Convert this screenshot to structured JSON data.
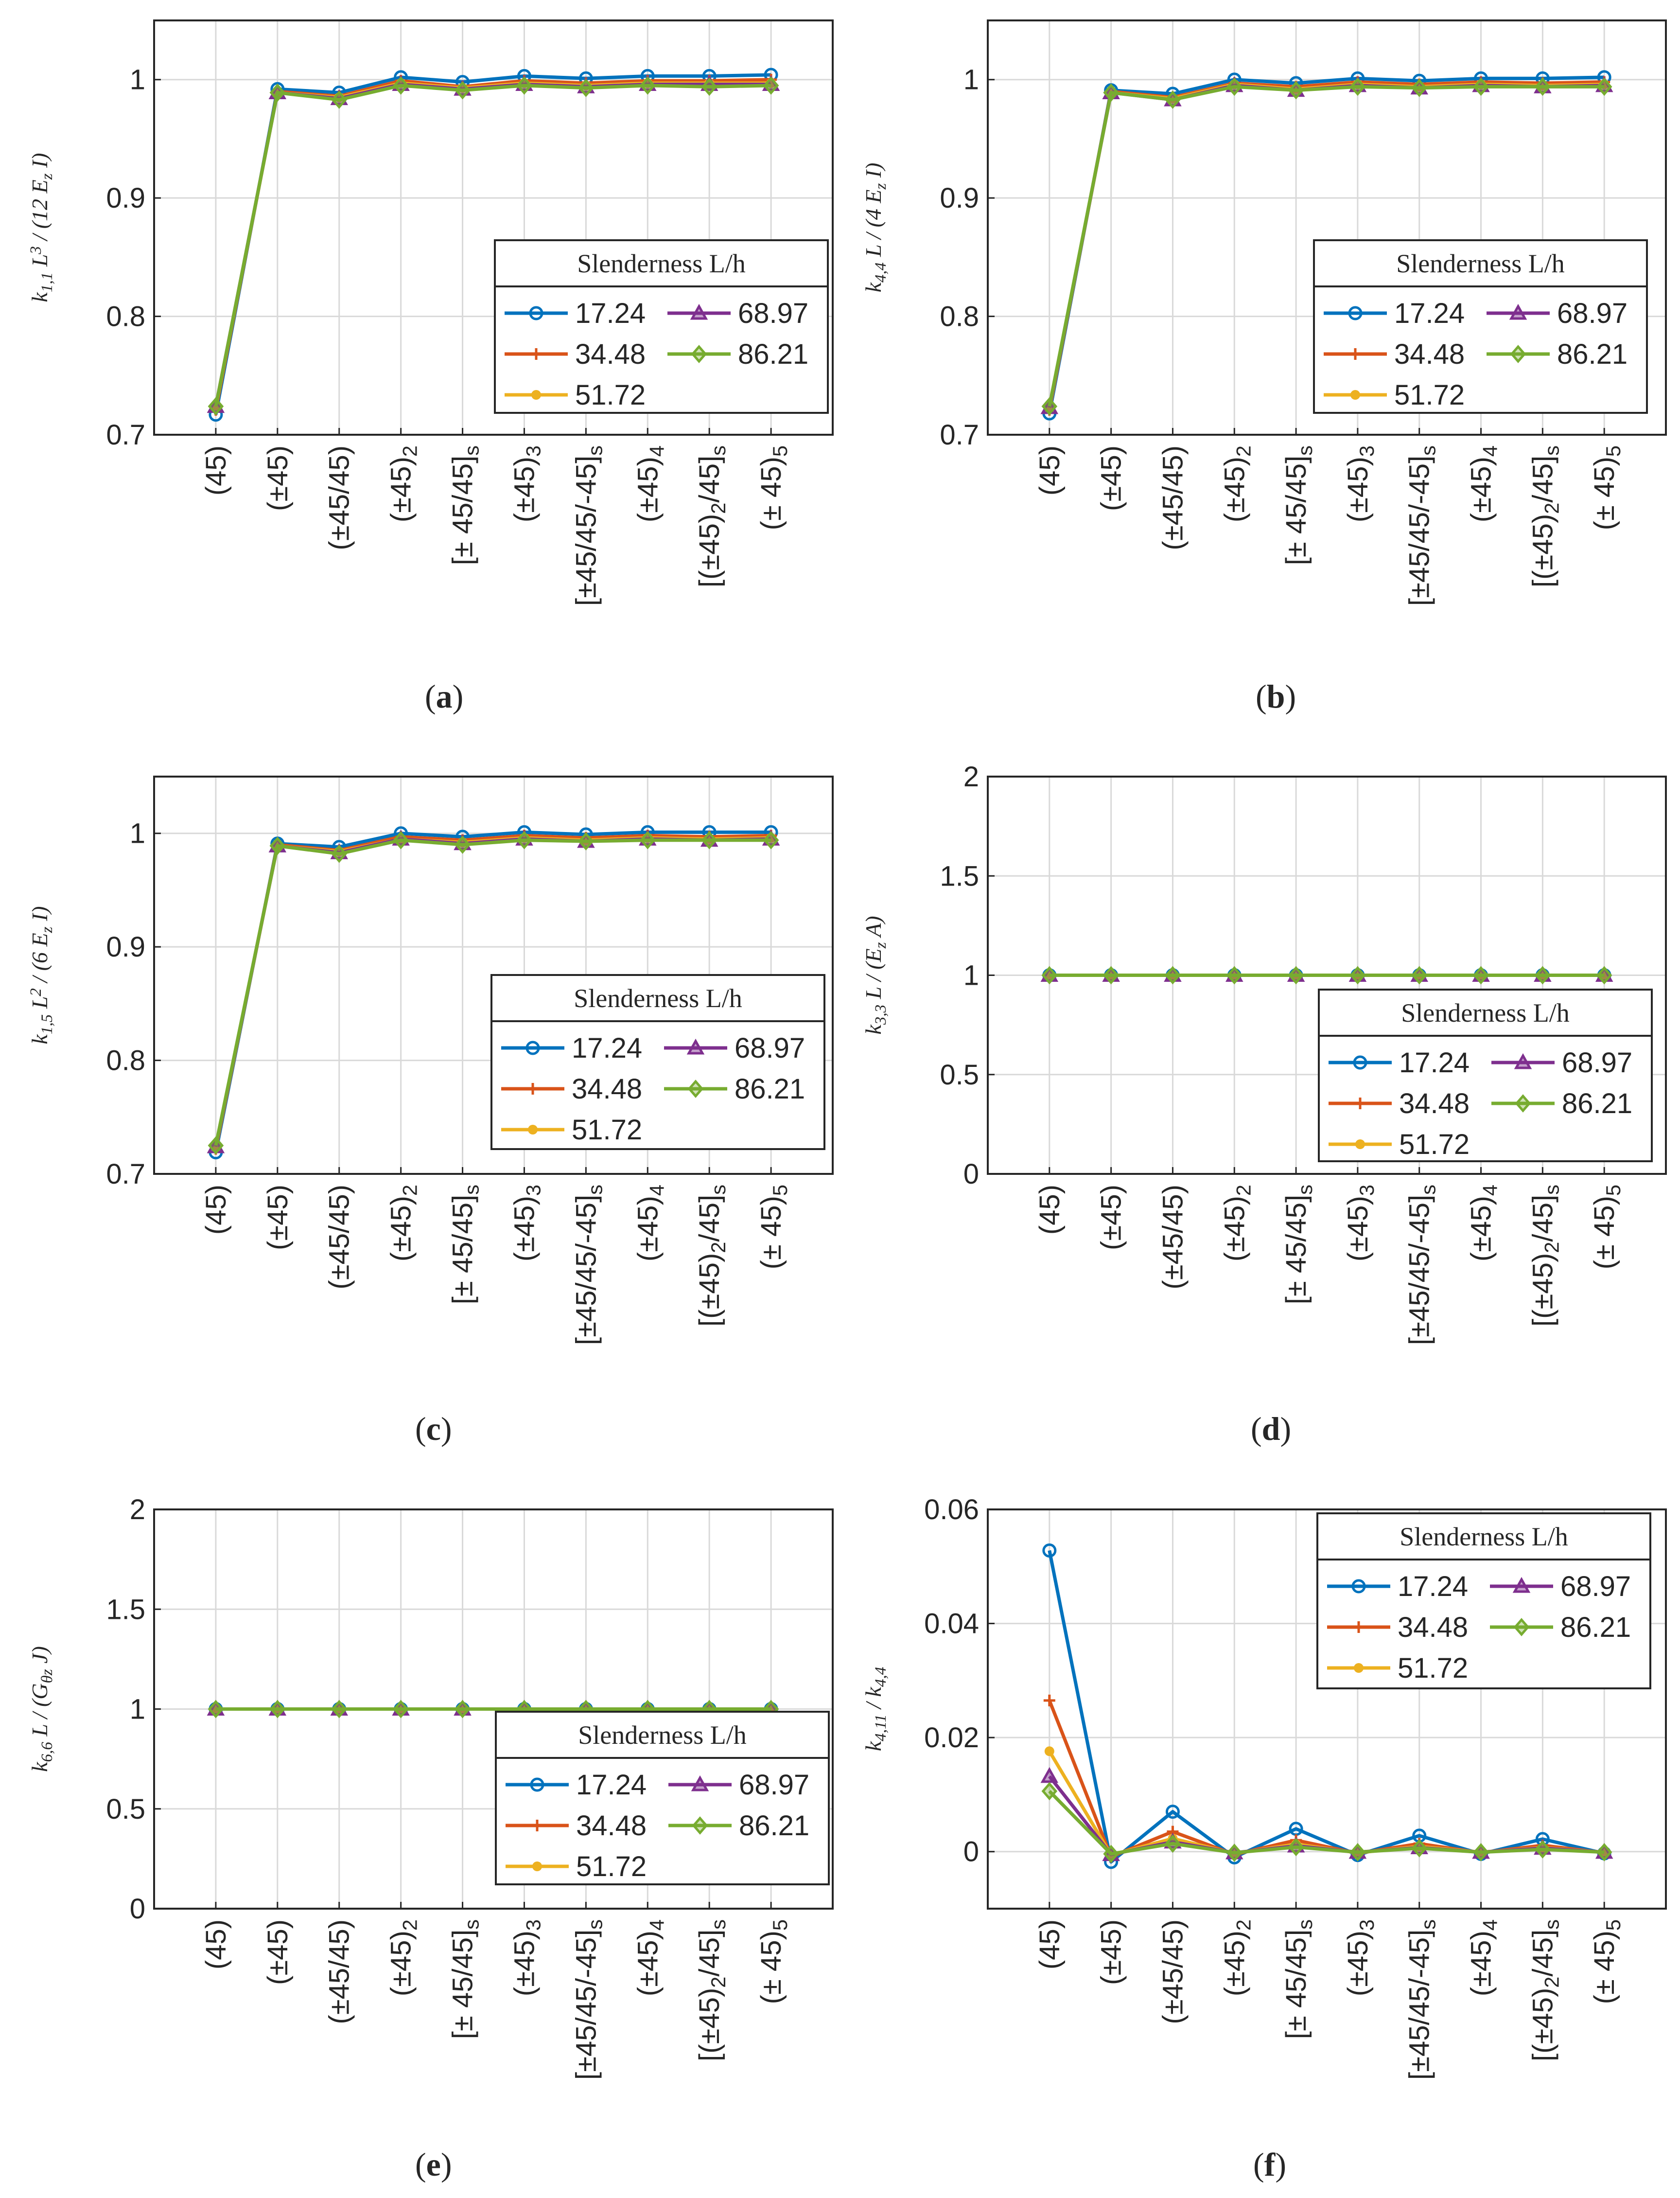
{
  "figure": {
    "legend_title": "Slenderness L/h",
    "series_colors": [
      "#0072BD",
      "#D95319",
      "#EDB120",
      "#7E2F8E",
      "#77AC30"
    ],
    "series_markers": [
      "circle",
      "plus",
      "dot",
      "triangle",
      "diamond"
    ]
  },
  "chart_data": [
    {
      "panel": "a",
      "type": "line",
      "ylabel": "k_{1,1} L^3 / (12 E_z I)",
      "ylim": [
        0.7,
        1.05
      ],
      "yticks": [
        "0.7",
        "0.8",
        "0.9",
        "1"
      ],
      "categories": [
        "(45)",
        "(±45)",
        "(±45/45)",
        "(±45)_2",
        "[± 45/45]_s",
        "(±45)_3",
        "[±45/45/-45]_s",
        "(±45)_4",
        "[(±45)_2/45]_s",
        "(± 45)_5"
      ],
      "legend": "bottom-right",
      "series": [
        {
          "name": "17.24",
          "values": [
            0.717,
            0.992,
            0.989,
            1.002,
            0.998,
            1.003,
            1.001,
            1.003,
            1.003,
            1.004
          ]
        },
        {
          "name": "34.48",
          "values": [
            0.721,
            0.99,
            0.986,
            0.999,
            0.994,
            0.999,
            0.997,
            0.999,
            0.999,
            1.0
          ]
        },
        {
          "name": "51.72",
          "values": [
            0.723,
            0.989,
            0.985,
            0.997,
            0.993,
            0.997,
            0.995,
            0.997,
            0.997,
            0.997
          ]
        },
        {
          "name": "68.97",
          "values": [
            0.724,
            0.989,
            0.984,
            0.996,
            0.992,
            0.996,
            0.994,
            0.996,
            0.996,
            0.996
          ]
        },
        {
          "name": "86.21",
          "values": [
            0.724,
            0.989,
            0.983,
            0.995,
            0.991,
            0.995,
            0.993,
            0.995,
            0.994,
            0.995
          ]
        }
      ]
    },
    {
      "panel": "b",
      "type": "line",
      "ylabel": "k_{4,4} L / (4 E_z I)",
      "ylim": [
        0.7,
        1.05
      ],
      "yticks": [
        "0.7",
        "0.8",
        "0.9",
        "1"
      ],
      "categories": [
        "(45)",
        "(±45)",
        "(±45/45)",
        "(±45)_2",
        "[± 45/45]_s",
        "(±45)_3",
        "[±45/45/-45]_s",
        "(±45)_4",
        "[(±45)_2/45]_s",
        "(± 45)_5"
      ],
      "legend": "bottom-right",
      "series": [
        {
          "name": "17.24",
          "values": [
            0.718,
            0.991,
            0.988,
            1.0,
            0.997,
            1.001,
            0.999,
            1.001,
            1.001,
            1.002
          ]
        },
        {
          "name": "34.48",
          "values": [
            0.721,
            0.99,
            0.985,
            0.997,
            0.994,
            0.998,
            0.996,
            0.998,
            0.997,
            0.998
          ]
        },
        {
          "name": "51.72",
          "values": [
            0.722,
            0.989,
            0.984,
            0.996,
            0.992,
            0.996,
            0.994,
            0.996,
            0.995,
            0.996
          ]
        },
        {
          "name": "68.97",
          "values": [
            0.723,
            0.989,
            0.983,
            0.995,
            0.991,
            0.995,
            0.993,
            0.995,
            0.994,
            0.995
          ]
        },
        {
          "name": "86.21",
          "values": [
            0.724,
            0.989,
            0.983,
            0.994,
            0.991,
            0.994,
            0.993,
            0.994,
            0.994,
            0.994
          ]
        }
      ]
    },
    {
      "panel": "c",
      "type": "line",
      "ylabel": "k_{1,5} L^2 / (6 E_z I)",
      "ylim": [
        0.7,
        1.05
      ],
      "yticks": [
        "0.7",
        "0.8",
        "0.9",
        "1"
      ],
      "categories": [
        "(45)",
        "(±45)",
        "(±45/45)",
        "(±45)_2",
        "[± 45/45]_s",
        "(±45)_3",
        "[±45/45/-45]_s",
        "(±45)_4",
        "[(±45)_2/45]_s",
        "(± 45)_5"
      ],
      "legend": "bottom-right",
      "series": [
        {
          "name": "17.24",
          "values": [
            0.719,
            0.991,
            0.988,
            1.0,
            0.997,
            1.001,
            0.999,
            1.001,
            1.001,
            1.001
          ]
        },
        {
          "name": "34.48",
          "values": [
            0.722,
            0.99,
            0.985,
            0.997,
            0.994,
            0.998,
            0.996,
            0.998,
            0.997,
            0.998
          ]
        },
        {
          "name": "51.72",
          "values": [
            0.723,
            0.989,
            0.984,
            0.995,
            0.992,
            0.996,
            0.994,
            0.996,
            0.995,
            0.996
          ]
        },
        {
          "name": "68.97",
          "values": [
            0.724,
            0.989,
            0.983,
            0.995,
            0.991,
            0.995,
            0.993,
            0.995,
            0.994,
            0.995
          ]
        },
        {
          "name": "86.21",
          "values": [
            0.725,
            0.989,
            0.982,
            0.994,
            0.99,
            0.994,
            0.993,
            0.994,
            0.994,
            0.994
          ]
        }
      ]
    },
    {
      "panel": "d",
      "type": "line",
      "ylabel": "k_{3,3} L / (E_z A)",
      "ylim": [
        0,
        2
      ],
      "yticks": [
        "0",
        "0.5",
        "1",
        "1.5",
        "2"
      ],
      "categories": [
        "(45)",
        "(±45)",
        "(±45/45)",
        "(±45)_2",
        "[± 45/45]_s",
        "(±45)_3",
        "[±45/45/-45]_s",
        "(±45)_4",
        "[(±45)_2/45]_s",
        "(± 45)_5"
      ],
      "legend": "bottom-right",
      "series": [
        {
          "name": "17.24",
          "values": [
            1,
            1,
            1,
            1,
            1,
            1,
            1,
            1,
            1,
            1
          ]
        },
        {
          "name": "34.48",
          "values": [
            1,
            1,
            1,
            1,
            1,
            1,
            1,
            1,
            1,
            1
          ]
        },
        {
          "name": "51.72",
          "values": [
            1,
            1,
            1,
            1,
            1,
            1,
            1,
            1,
            1,
            1
          ]
        },
        {
          "name": "68.97",
          "values": [
            1,
            1,
            1,
            1,
            1,
            1,
            1,
            1,
            1,
            1
          ]
        },
        {
          "name": "86.21",
          "values": [
            1,
            1,
            1,
            1,
            1,
            1,
            1,
            1,
            1,
            1
          ]
        }
      ]
    },
    {
      "panel": "e",
      "type": "line",
      "ylabel": "k_{6,6} L / (G_{θz} J)",
      "ylim": [
        0,
        2
      ],
      "yticks": [
        "0",
        "0.5",
        "1",
        "1.5",
        "2"
      ],
      "categories": [
        "(45)",
        "(±45)",
        "(±45/45)",
        "(±45)_2",
        "[± 45/45]_s",
        "(±45)_3",
        "[±45/45/-45]_s",
        "(±45)_4",
        "[(±45)_2/45]_s",
        "(± 45)_5"
      ],
      "legend": "bottom-right",
      "series": [
        {
          "name": "17.24",
          "values": [
            1,
            1,
            1,
            1,
            1,
            1,
            1,
            1,
            1,
            1
          ]
        },
        {
          "name": "34.48",
          "values": [
            1,
            1,
            1,
            1,
            1,
            1,
            1,
            1,
            1,
            1
          ]
        },
        {
          "name": "51.72",
          "values": [
            1,
            1,
            1,
            1,
            1,
            1,
            1,
            1,
            1,
            1
          ]
        },
        {
          "name": "68.97",
          "values": [
            1,
            1,
            1,
            1,
            1,
            1,
            1,
            1,
            1,
            1
          ]
        },
        {
          "name": "86.21",
          "values": [
            1,
            1,
            1,
            1,
            1,
            1,
            1,
            1,
            1,
            1
          ]
        }
      ]
    },
    {
      "panel": "f",
      "type": "line",
      "ylabel": "k_{4,11} / k_{4,4}",
      "ylim": [
        -0.01,
        0.06
      ],
      "yticks": [
        "0",
        "0.02",
        "0.04",
        "0.06"
      ],
      "categories": [
        "(45)",
        "(±45)",
        "(±45/45)",
        "(±45)_2",
        "[± 45/45]_s",
        "(±45)_3",
        "[±45/45/-45]_s",
        "(±45)_4",
        "[(±45)_2/45]_s",
        "(± 45)_5"
      ],
      "legend": "top-right",
      "series": [
        {
          "name": "17.24",
          "values": [
            0.0528,
            -0.0018,
            0.007,
            -0.001,
            0.004,
            -0.0006,
            0.0028,
            -0.0004,
            0.0022,
            -0.0003
          ]
        },
        {
          "name": "34.48",
          "values": [
            0.0265,
            -0.0009,
            0.0035,
            -0.0005,
            0.002,
            -0.0003,
            0.0014,
            -0.0002,
            0.0011,
            -0.0002
          ]
        },
        {
          "name": "51.72",
          "values": [
            0.0176,
            -0.0006,
            0.0023,
            -0.0003,
            0.0013,
            -0.0002,
            0.0009,
            -0.0001,
            0.0007,
            -0.0001
          ]
        },
        {
          "name": "68.97",
          "values": [
            0.0132,
            -0.0005,
            0.0017,
            -0.0002,
            0.001,
            -0.0001,
            0.0007,
            -0.0001,
            0.0006,
            -0.0001
          ]
        },
        {
          "name": "86.21",
          "values": [
            0.0106,
            -0.0004,
            0.0014,
            -0.0002,
            0.0008,
            -0.0001,
            0.0006,
            -0.0001,
            0.0004,
            -0.0001
          ]
        }
      ]
    }
  ],
  "captions": [
    "(a)",
    "(b)",
    "(c)",
    "(d)",
    "(e)",
    "(f)"
  ]
}
